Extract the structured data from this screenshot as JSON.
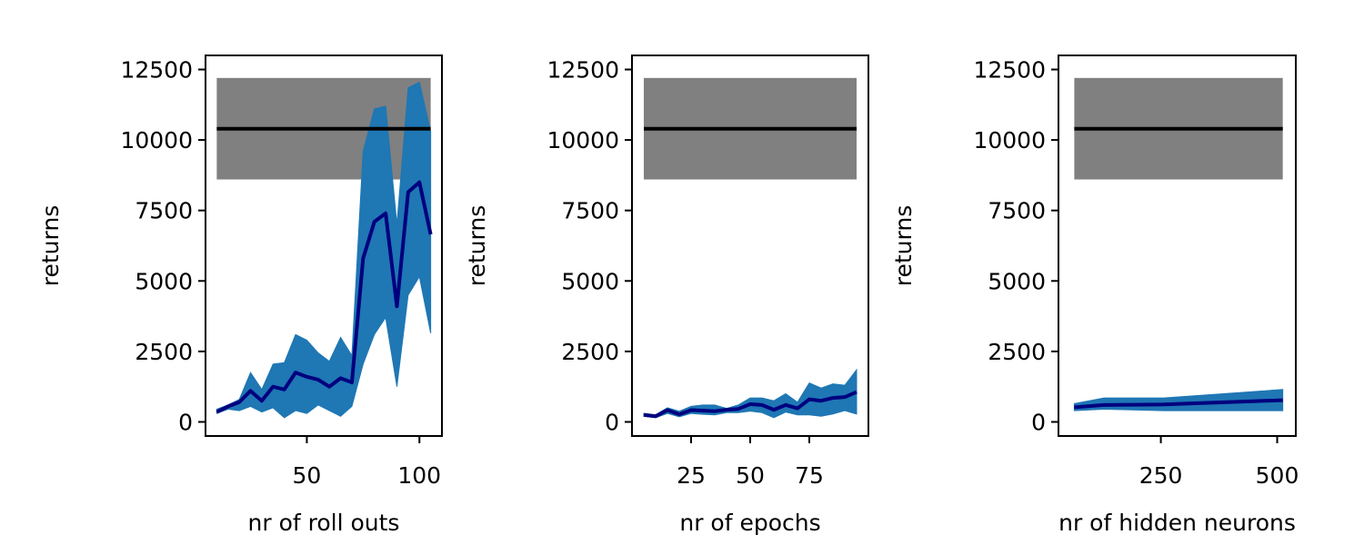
{
  "chart_data": [
    {
      "type": "line",
      "xlabel": "nr of roll outs",
      "ylabel": "returns",
      "xlim": [
        5,
        110
      ],
      "ylim": [
        -500,
        13000
      ],
      "xticks": [
        50,
        100
      ],
      "yticks": [
        0,
        2500,
        5000,
        7500,
        10000,
        12500
      ],
      "grid": false,
      "series": [
        {
          "x": [
            10,
            15,
            20,
            25,
            30,
            35,
            40,
            45,
            50,
            55,
            60,
            65,
            70,
            75,
            80,
            85,
            90,
            95,
            100,
            105
          ],
          "values": [
            350,
            550,
            700,
            1100,
            750,
            1250,
            1150,
            1750,
            1600,
            1500,
            1250,
            1550,
            1400,
            5800,
            7100,
            7400,
            4100,
            8150,
            8500,
            6650
          ],
          "lower": [
            300,
            450,
            400,
            550,
            350,
            500,
            150,
            400,
            300,
            600,
            400,
            200,
            550,
            2050,
            3100,
            3700,
            1250,
            4500,
            5150,
            3150
          ],
          "upper": [
            450,
            600,
            800,
            1750,
            1150,
            2050,
            2100,
            3100,
            2900,
            2450,
            2150,
            3000,
            2350,
            9600,
            11100,
            11200,
            7000,
            11850,
            12050,
            10300
          ]
        }
      ],
      "reference": {
        "value": 10400,
        "lower": 8600,
        "upper": 12200
      }
    },
    {
      "type": "line",
      "xlabel": "nr of epochs",
      "ylabel": "returns",
      "xlim": [
        0,
        100
      ],
      "ylim": [
        -500,
        13000
      ],
      "xticks": [
        25,
        50,
        75
      ],
      "yticks": [
        0,
        2500,
        5000,
        7500,
        10000,
        12500
      ],
      "grid": false,
      "series": [
        {
          "x": [
            5,
            10,
            15,
            20,
            25,
            30,
            35,
            40,
            45,
            50,
            55,
            60,
            65,
            70,
            75,
            80,
            85,
            90,
            95
          ],
          "values": [
            250,
            200,
            420,
            270,
            420,
            400,
            380,
            430,
            460,
            630,
            600,
            430,
            600,
            480,
            800,
            750,
            850,
            880,
            1060
          ],
          "lower": [
            200,
            150,
            300,
            180,
            300,
            270,
            250,
            330,
            330,
            380,
            330,
            150,
            350,
            250,
            250,
            200,
            280,
            400,
            280
          ],
          "upper": [
            300,
            250,
            500,
            380,
            550,
            600,
            600,
            480,
            600,
            850,
            850,
            750,
            1000,
            700,
            1380,
            1200,
            1350,
            1300,
            1850
          ]
        }
      ],
      "reference": {
        "value": 10400,
        "lower": 8600,
        "upper": 12200
      }
    },
    {
      "type": "line",
      "xlabel": "nr of hidden neurons",
      "ylabel": "returns",
      "xlim": [
        30,
        540
      ],
      "ylim": [
        -500,
        13000
      ],
      "xticks": [
        250,
        500
      ],
      "yticks": [
        0,
        2500,
        5000,
        7500,
        10000,
        12500
      ],
      "grid": false,
      "series": [
        {
          "x": [
            64,
            128,
            256,
            512
          ],
          "values": [
            520,
            600,
            620,
            770
          ],
          "lower": [
            400,
            450,
            400,
            400
          ],
          "upper": [
            650,
            850,
            850,
            1150
          ]
        }
      ],
      "reference": {
        "value": 10400,
        "lower": 8600,
        "upper": 12200
      }
    }
  ],
  "colors": {
    "band": "#1f77b4",
    "line": "#00007f",
    "reference_band": "#808080",
    "reference_line": "#000000"
  }
}
